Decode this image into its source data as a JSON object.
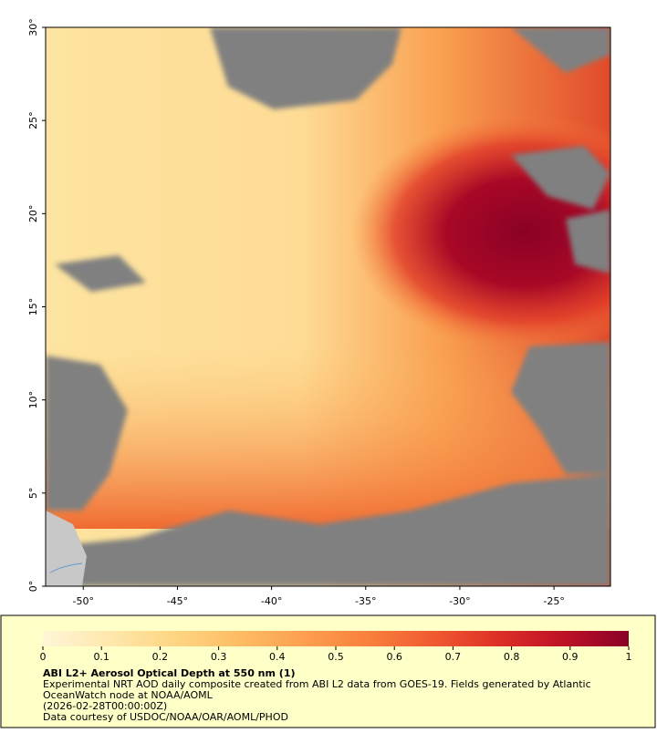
{
  "map": {
    "xlim": [
      -52,
      -22
    ],
    "ylim": [
      0,
      30
    ],
    "xticks": [
      {
        "value": -50,
        "label": "-50°"
      },
      {
        "value": -45,
        "label": "-45°"
      },
      {
        "value": -40,
        "label": "-40°"
      },
      {
        "value": -35,
        "label": "-35°"
      },
      {
        "value": -30,
        "label": "-30°"
      },
      {
        "value": -25,
        "label": "-25°"
      }
    ],
    "yticks": [
      {
        "value": 0,
        "label": "0°"
      },
      {
        "value": 5,
        "label": "5°"
      },
      {
        "value": 10,
        "label": "10°"
      },
      {
        "value": 15,
        "label": "15°"
      },
      {
        "value": 20,
        "label": "20°"
      },
      {
        "value": 25,
        "label": "25°"
      },
      {
        "value": 30,
        "label": "30°"
      }
    ]
  },
  "colorbar": {
    "lim": [
      0,
      1
    ],
    "ticks": [
      0,
      0.1,
      0.2,
      0.3,
      0.4,
      0.5,
      0.6,
      0.7,
      0.8,
      0.9,
      1
    ],
    "colors": [
      "#fff6d8",
      "#fee8ad",
      "#fed684",
      "#fdbd63",
      "#fca04f",
      "#f9803d",
      "#f05a30",
      "#dc3027",
      "#bd1126",
      "#8a0126"
    ]
  },
  "caption": {
    "title": "ABI L2+ Aerosol Optical Depth at 550 nm (1)",
    "lines": [
      "Experimental NRT AOD daily composite created from ABI L2 data from GOES-19. Fields generated by Atlantic",
      "OceanWatch node at NOAA/AOML",
      "(2026-02-28T00:00:00Z)",
      "Data courtesy of USDOC/NOAA/OAR/AOML/PHOD"
    ]
  }
}
